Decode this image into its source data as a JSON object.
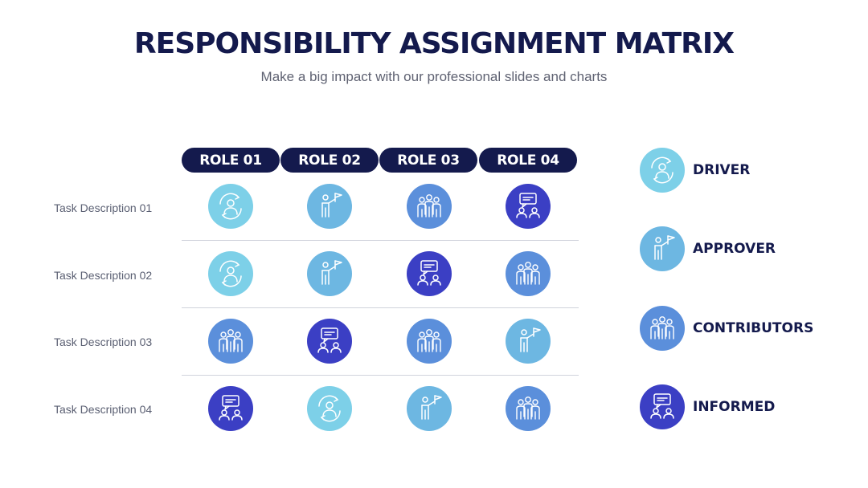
{
  "header": {
    "title": "RESPONSIBILITY ASSIGNMENT MATRIX",
    "subtitle": "Make a big impact with our professional slides and charts"
  },
  "roles": [
    "ROLE 01",
    "ROLE 02",
    "ROLE 03",
    "ROLE 04"
  ],
  "tasks": [
    "Task Description 01",
    "Task Description 02",
    "Task Description 03",
    "Task Description 04"
  ],
  "legend": [
    {
      "key": "driver",
      "label": "DRIVER",
      "color": "#7dd0e8",
      "icon": "driver-icon"
    },
    {
      "key": "approver",
      "label": "APPROVER",
      "color": "#6db7e2",
      "icon": "approver-icon"
    },
    {
      "key": "contributors",
      "label": "CONTRIBUTORS",
      "color": "#5b8fdb",
      "icon": "contributors-icon"
    },
    {
      "key": "informed",
      "label": "INFORMED",
      "color": "#3b3fc4",
      "icon": "informed-icon"
    }
  ],
  "matrix": [
    [
      "driver",
      "approver",
      "contributors",
      "informed"
    ],
    [
      "driver",
      "approver",
      "informed",
      "contributors"
    ],
    [
      "contributors",
      "informed",
      "contributors",
      "approver"
    ],
    [
      "informed",
      "driver",
      "approver",
      "contributors"
    ]
  ]
}
